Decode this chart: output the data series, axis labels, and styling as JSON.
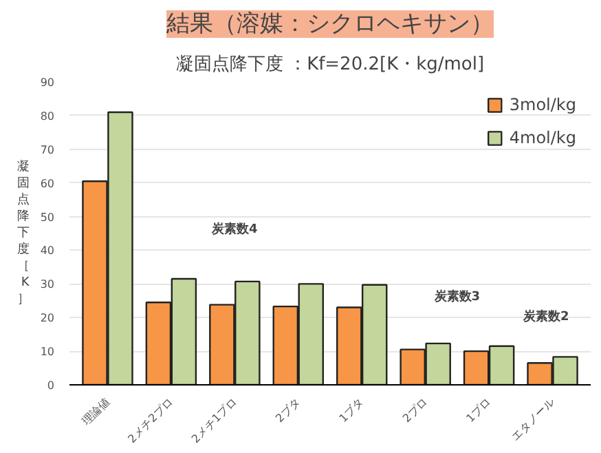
{
  "chart_data": {
    "type": "bar",
    "title": "結果（溶媒：シクロヘキサン）",
    "subtitle": "凝固点降下度 ：Kf=20.2[K・kg/mol]",
    "ylabel": "凝固点降下度［K］",
    "categories": [
      "理論値",
      "2メチ2プロ",
      "2メチ1プロ",
      "2ブタ",
      "1ブタ",
      "2プロ",
      "1プロ",
      "エタノール"
    ],
    "series": [
      {
        "name": "3mol/kg",
        "color": "#f79646",
        "values": [
          60.5,
          24.5,
          23.8,
          23.3,
          23,
          10.5,
          10,
          6.5
        ]
      },
      {
        "name": "4mol/kg",
        "color": "#c3d69b",
        "values": [
          81,
          31.5,
          30.7,
          30,
          29.7,
          12.3,
          11.5,
          8.3
        ]
      }
    ],
    "annotations": [
      "炭素数4",
      "炭素数3",
      "炭素数2"
    ],
    "ylim": [
      0,
      90
    ],
    "yticks": [
      0,
      10,
      20,
      30,
      40,
      50,
      60,
      70,
      80,
      90
    ],
    "grid": "y",
    "legend": "top right"
  }
}
